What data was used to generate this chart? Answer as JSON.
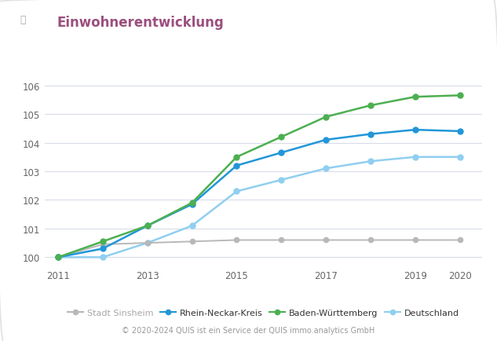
{
  "title": "Einwohnerentwicklung",
  "title_color": "#9b4f7e",
  "background_color": "#ffffff",
  "years": [
    2011,
    2012,
    2013,
    2014,
    2015,
    2016,
    2017,
    2018,
    2019,
    2020
  ],
  "series": {
    "Stadt Sinsheim": {
      "values": [
        100.0,
        100.45,
        100.5,
        100.55,
        100.6,
        100.6,
        100.6,
        100.6,
        100.6,
        100.6
      ],
      "color": "#b8b8b8",
      "marker": "o",
      "linewidth": 1.4,
      "markersize": 4.5,
      "zorder": 2
    },
    "Rhein-Neckar-Kreis": {
      "values": [
        100.0,
        100.3,
        101.1,
        101.85,
        103.2,
        103.65,
        104.1,
        104.3,
        104.45,
        104.4
      ],
      "color": "#2196d8",
      "marker": "o",
      "linewidth": 1.8,
      "markersize": 5,
      "zorder": 3
    },
    "Baden-Württemberg": {
      "values": [
        100.0,
        100.55,
        101.1,
        101.9,
        103.5,
        104.2,
        104.9,
        105.3,
        105.6,
        105.65
      ],
      "color": "#4caf50",
      "marker": "o",
      "linewidth": 1.8,
      "markersize": 5,
      "zorder": 4
    },
    "Deutschland": {
      "values": [
        100.0,
        100.0,
        100.5,
        101.1,
        102.3,
        102.7,
        103.1,
        103.35,
        103.5,
        103.5
      ],
      "color": "#90cff0",
      "marker": "o",
      "linewidth": 1.8,
      "markersize": 5,
      "zorder": 1
    }
  },
  "ylim": [
    99.7,
    106.5
  ],
  "yticks": [
    100,
    101,
    102,
    103,
    104,
    105,
    106
  ],
  "xticks": [
    2011,
    2013,
    2015,
    2017,
    2019,
    2020
  ],
  "grid_color": "#d8dce8",
  "footer": "© 2020-2024 QUIS ist ein Service der QUIS immo.analytics GmbH",
  "icon_color": "#aaaaaa",
  "border_color": "#e0e0e0"
}
